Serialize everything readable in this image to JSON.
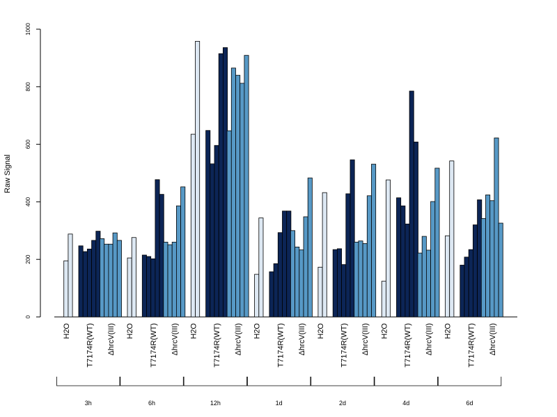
{
  "chart_data": {
    "type": "bar",
    "ylabel": "Raw Signal",
    "ylim": [
      0,
      1000
    ],
    "yticks": [
      0,
      200,
      400,
      600,
      800,
      1000
    ],
    "colors": {
      "H2O": "#dde8f3",
      "T7174R(WT)": "#0c2556",
      "ΔhrcV(III)": "#5799c6"
    },
    "conditions": [
      "H2O",
      "T7174R(WT)",
      "ΔhrcV(III)"
    ],
    "groups": [
      {
        "label": "3h",
        "H2O": [
          0,
          195,
          288
        ],
        "T7174R(WT)": [
          247,
          227,
          236,
          266,
          298
        ],
        "ΔhrcV(III)": [
          272,
          253,
          253,
          292,
          266
        ]
      },
      {
        "label": "6h",
        "H2O": [
          0,
          205,
          276
        ],
        "T7174R(WT)": [
          215,
          210,
          202,
          477,
          426
        ],
        "ΔhrcV(III)": [
          260,
          251,
          260,
          386,
          452
        ]
      },
      {
        "label": "12h",
        "H2O": [
          0,
          635,
          958
        ],
        "T7174R(WT)": [
          648,
          532,
          596,
          915,
          936
        ],
        "ΔhrcV(III)": [
          647,
          865,
          840,
          812,
          909
        ]
      },
      {
        "label": "1d",
        "H2O": [
          0,
          148,
          344
        ],
        "T7174R(WT)": [
          157,
          185,
          293,
          368,
          368
        ],
        "ΔhrcV(III)": [
          300,
          243,
          233,
          348,
          483
        ]
      },
      {
        "label": "2d",
        "H2O": [
          0,
          173,
          432
        ],
        "T7174R(WT)": [
          234,
          237,
          182,
          428,
          546
        ],
        "ΔhrcV(III)": [
          260,
          264,
          255,
          421,
          531
        ]
      },
      {
        "label": "4d",
        "H2O": [
          0,
          124,
          476
        ],
        "T7174R(WT)": [
          414,
          386,
          323,
          785,
          608
        ],
        "ΔhrcV(III)": [
          222,
          280,
          232,
          401,
          517
        ]
      },
      {
        "label": "6d",
        "H2O": [
          0,
          282,
          542
        ],
        "T7174R(WT)": [
          180,
          208,
          234,
          320,
          407
        ],
        "ΔhrcV(III)": [
          342,
          424,
          404,
          622,
          326
        ]
      }
    ]
  }
}
